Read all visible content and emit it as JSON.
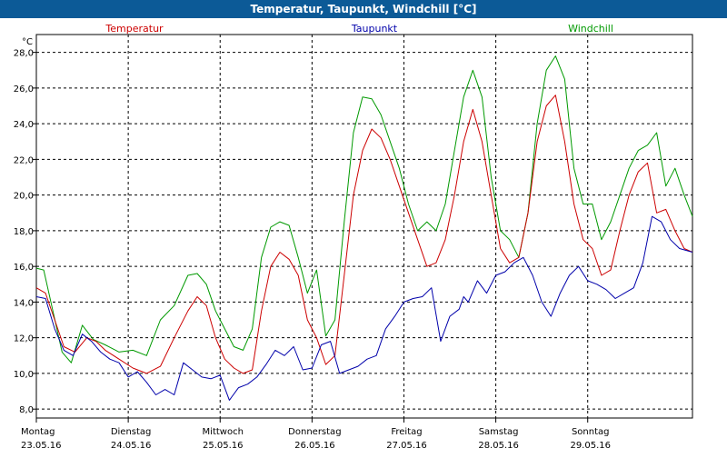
{
  "window": {
    "title": "Temperatur, Taupunkt, Windchill [°C]"
  },
  "chart_data": {
    "type": "line",
    "title": "Temperatur, Taupunkt, Windchill [°C]",
    "ylabel": "°C",
    "ylim": [
      7.5,
      29.0
    ],
    "xlim": [
      0,
      7.14
    ],
    "yticks": [
      8.0,
      10.0,
      12.0,
      14.0,
      16.0,
      18.0,
      20.0,
      22.0,
      24.0,
      26.0,
      28.0
    ],
    "ytick_labels": [
      "8,0",
      "10,0",
      "12,0",
      "14,0",
      "16,0",
      "18,0",
      "20,0",
      "22,0",
      "24,0",
      "26,0",
      "28,0"
    ],
    "grid": true,
    "days": [
      {
        "name": "Montag",
        "date": "23.05.16"
      },
      {
        "name": "Dienstag",
        "date": "24.05.16"
      },
      {
        "name": "Mittwoch",
        "date": "25.05.16"
      },
      {
        "name": "Donnerstag",
        "date": "26.05.16"
      },
      {
        "name": "Freitag",
        "date": "27.05.16"
      },
      {
        "name": "Samstag",
        "date": "28.05.16"
      },
      {
        "name": "Sonntag",
        "date": "29.05.16"
      }
    ],
    "series": [
      {
        "name": "Temperatur",
        "color": "#cc0000",
        "x": [
          0.0,
          0.1,
          0.2,
          0.3,
          0.42,
          0.55,
          0.65,
          0.75,
          0.9,
          1.05,
          1.2,
          1.35,
          1.5,
          1.65,
          1.75,
          1.85,
          1.95,
          2.05,
          2.15,
          2.25,
          2.35,
          2.45,
          2.55,
          2.65,
          2.75,
          2.85,
          2.95,
          3.05,
          3.15,
          3.25,
          3.35,
          3.45,
          3.55,
          3.65,
          3.75,
          3.85,
          3.95,
          4.05,
          4.15,
          4.25,
          4.35,
          4.45,
          4.55,
          4.65,
          4.75,
          4.85,
          4.95,
          5.05,
          5.15,
          5.25,
          5.35,
          5.45,
          5.55,
          5.65,
          5.75,
          5.85,
          5.95,
          6.05,
          6.15,
          6.25,
          6.35,
          6.45,
          6.55,
          6.65,
          6.75,
          6.85,
          6.95,
          7.05,
          7.14
        ],
        "values": [
          14.8,
          14.5,
          13.0,
          11.5,
          11.2,
          12.0,
          11.8,
          11.3,
          10.8,
          10.3,
          10.0,
          10.4,
          12.0,
          13.5,
          14.3,
          13.8,
          12.0,
          10.8,
          10.3,
          10.0,
          10.2,
          13.5,
          16.0,
          16.8,
          16.4,
          15.5,
          13.0,
          12.0,
          10.5,
          11.0,
          15.5,
          20.0,
          22.5,
          23.7,
          23.2,
          22.0,
          20.5,
          19.0,
          17.5,
          16.0,
          16.2,
          17.5,
          20.0,
          23.0,
          24.8,
          23.0,
          20.0,
          17.0,
          16.2,
          16.5,
          19.0,
          23.0,
          25.0,
          25.6,
          23.0,
          19.5,
          17.5,
          17.0,
          15.5,
          15.8,
          18.0,
          20.0,
          21.3,
          21.8,
          19.0,
          19.2,
          18.0,
          17.0,
          16.8
        ]
      },
      {
        "name": "Taupunkt",
        "color": "#0000aa",
        "x": [
          0.0,
          0.1,
          0.2,
          0.3,
          0.4,
          0.5,
          0.6,
          0.7,
          0.8,
          0.9,
          1.0,
          1.1,
          1.2,
          1.3,
          1.4,
          1.5,
          1.6,
          1.7,
          1.8,
          1.9,
          2.0,
          2.1,
          2.2,
          2.3,
          2.4,
          2.5,
          2.6,
          2.7,
          2.8,
          2.9,
          3.0,
          3.1,
          3.2,
          3.3,
          3.4,
          3.5,
          3.6,
          3.7,
          3.8,
          3.9,
          4.0,
          4.1,
          4.2,
          4.3,
          4.4,
          4.5,
          4.6,
          4.65,
          4.7,
          4.8,
          4.9,
          5.0,
          5.1,
          5.2,
          5.3,
          5.4,
          5.5,
          5.6,
          5.7,
          5.8,
          5.9,
          6.0,
          6.1,
          6.2,
          6.3,
          6.4,
          6.5,
          6.6,
          6.7,
          6.8,
          6.9,
          7.0,
          7.14
        ],
        "values": [
          14.3,
          14.2,
          12.5,
          11.3,
          11.0,
          12.2,
          11.8,
          11.2,
          10.8,
          10.6,
          9.8,
          10.1,
          9.5,
          8.8,
          9.1,
          8.8,
          10.6,
          10.2,
          9.8,
          9.7,
          9.9,
          8.5,
          9.2,
          9.4,
          9.8,
          10.5,
          11.3,
          11.0,
          11.5,
          10.2,
          10.3,
          11.6,
          11.8,
          10.0,
          10.2,
          10.4,
          10.8,
          11.0,
          12.5,
          13.2,
          14.0,
          14.2,
          14.3,
          14.8,
          11.8,
          13.2,
          13.6,
          14.3,
          14.0,
          15.2,
          14.5,
          15.5,
          15.7,
          16.2,
          16.5,
          15.5,
          14.0,
          13.2,
          14.5,
          15.5,
          16.0,
          15.2,
          15.0,
          14.7,
          14.2,
          14.5,
          14.8,
          16.2,
          18.8,
          18.5,
          17.5,
          17.0,
          16.8
        ]
      },
      {
        "name": "Windchill",
        "color": "#009900",
        "x": [
          0.0,
          0.08,
          0.18,
          0.28,
          0.38,
          0.5,
          0.62,
          0.75,
          0.9,
          1.05,
          1.2,
          1.35,
          1.5,
          1.65,
          1.75,
          1.85,
          1.95,
          2.05,
          2.15,
          2.25,
          2.35,
          2.45,
          2.55,
          2.65,
          2.75,
          2.85,
          2.95,
          3.05,
          3.15,
          3.25,
          3.35,
          3.45,
          3.55,
          3.65,
          3.75,
          3.85,
          3.95,
          4.05,
          4.15,
          4.25,
          4.35,
          4.45,
          4.55,
          4.65,
          4.75,
          4.85,
          4.95,
          5.05,
          5.15,
          5.25,
          5.35,
          5.45,
          5.55,
          5.65,
          5.75,
          5.85,
          5.95,
          6.05,
          6.15,
          6.25,
          6.35,
          6.45,
          6.55,
          6.65,
          6.75,
          6.85,
          6.95,
          7.05,
          7.14
        ],
        "values": [
          15.9,
          15.8,
          13.5,
          11.2,
          10.6,
          12.7,
          11.9,
          11.6,
          11.2,
          11.3,
          11.0,
          13.0,
          13.8,
          15.5,
          15.6,
          15.0,
          13.5,
          12.5,
          11.5,
          11.3,
          12.5,
          16.5,
          18.2,
          18.5,
          18.3,
          16.5,
          14.5,
          15.8,
          12.1,
          13.0,
          18.5,
          23.5,
          25.5,
          25.4,
          24.5,
          23.0,
          21.5,
          19.5,
          18.0,
          18.5,
          18.0,
          19.5,
          22.5,
          25.5,
          27.0,
          25.5,
          21.0,
          18.0,
          17.5,
          16.5,
          19.0,
          24.0,
          27.0,
          27.8,
          26.5,
          21.5,
          19.5,
          19.5,
          17.5,
          18.5,
          20.0,
          21.5,
          22.5,
          22.8,
          23.5,
          20.5,
          21.5,
          20.0,
          18.8
        ]
      }
    ]
  }
}
